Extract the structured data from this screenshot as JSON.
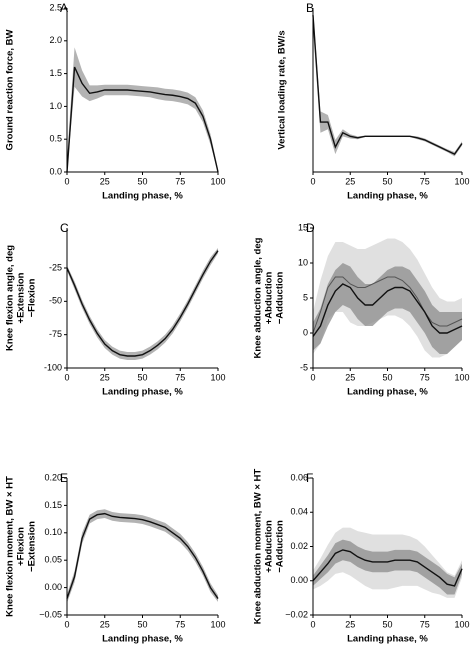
{
  "chart_data": [
    {
      "type": "line",
      "panel": "A",
      "ylabel": [
        "Ground reaction force, BW"
      ],
      "xlabel": "Landing phase, %",
      "x": [
        0,
        5,
        10,
        15,
        20,
        25,
        30,
        35,
        40,
        45,
        50,
        55,
        60,
        65,
        70,
        75,
        80,
        85,
        90,
        95,
        100
      ],
      "xlim": [
        0,
        100
      ],
      "xticks": [
        0,
        25,
        50,
        75,
        100
      ],
      "ylim": [
        0,
        2.5
      ],
      "yticks": [
        {
          "value": 0,
          "label": "0.0"
        },
        {
          "value": 0.5,
          "label": "0.5"
        },
        {
          "value": 1,
          "label": "1.0"
        },
        {
          "value": 1.5,
          "label": "1.5"
        },
        {
          "value": 2,
          "label": "2.0"
        },
        {
          "value": 2.5,
          "label": "2.5"
        }
      ],
      "bands": [
        {
          "color": "#9a9a9a",
          "upper": [
            0.2,
            1.9,
            1.55,
            1.32,
            1.32,
            1.33,
            1.33,
            1.33,
            1.33,
            1.32,
            1.31,
            1.3,
            1.29,
            1.27,
            1.26,
            1.24,
            1.21,
            1.14,
            0.94,
            0.58,
            0.05
          ],
          "lower": [
            0,
            1.3,
            1.15,
            1.08,
            1.12,
            1.17,
            1.17,
            1.17,
            1.17,
            1.16,
            1.15,
            1.14,
            1.11,
            1.09,
            1.08,
            1.06,
            1.03,
            0.96,
            0.76,
            0.42,
            0
          ]
        }
      ],
      "series": [
        {
          "color": "#111",
          "values": [
            0,
            1.6,
            1.35,
            1.2,
            1.22,
            1.25,
            1.25,
            1.25,
            1.25,
            1.24,
            1.23,
            1.22,
            1.2,
            1.18,
            1.17,
            1.15,
            1.12,
            1.05,
            0.85,
            0.5,
            0
          ]
        }
      ]
    },
    {
      "type": "line",
      "panel": "B",
      "ylabel": [
        "Vertical loading rate, BW/s"
      ],
      "xlabel": "Landing phase, %",
      "x": [
        0,
        5,
        10,
        15,
        20,
        25,
        30,
        35,
        40,
        45,
        50,
        55,
        60,
        65,
        70,
        75,
        80,
        85,
        90,
        95,
        100
      ],
      "xlim": [
        0,
        100
      ],
      "xticks": [
        0,
        25,
        50,
        75,
        100
      ],
      "ylim": [
        -50,
        180
      ],
      "bands": [
        {
          "color": "#9a9a9a",
          "upper": [
            180,
            35,
            30,
            -5,
            10,
            3,
            0,
            1,
            1,
            1,
            1,
            1,
            1,
            1,
            0,
            -3,
            -8,
            -13,
            -18,
            -22,
            -7
          ],
          "lower": [
            150,
            5,
            10,
            -25,
            0,
            -3,
            -4,
            -1,
            -1,
            -1,
            -1,
            -1,
            -1,
            -1,
            -4,
            -7,
            -12,
            -17,
            -22,
            -28,
            -13
          ]
        }
      ],
      "series": [
        {
          "color": "#111",
          "values": [
            170,
            20,
            20,
            -15,
            5,
            0,
            -2,
            0,
            0,
            0,
            0,
            0,
            0,
            0,
            -2,
            -5,
            -10,
            -15,
            -20,
            -25,
            -10
          ]
        }
      ]
    },
    {
      "type": "line",
      "panel": "C",
      "ylabel": [
        "Knee flexion angle, deg",
        "+Extension",
        "−Flexion"
      ],
      "xlabel": "Landing phase, %",
      "x": [
        0,
        5,
        10,
        15,
        20,
        25,
        30,
        35,
        40,
        45,
        50,
        55,
        60,
        65,
        70,
        75,
        80,
        85,
        90,
        95,
        100
      ],
      "xlim": [
        0,
        100
      ],
      "xticks": [
        0,
        25,
        50,
        75,
        100
      ],
      "ylim": [
        -100,
        5
      ],
      "yticks": [
        -100,
        -75,
        -50,
        -25
      ],
      "bands": [
        {
          "color": "#9a9a9a",
          "upper": [
            -23,
            -35,
            -49,
            -61,
            -71,
            -79,
            -84,
            -87,
            -88,
            -88,
            -87,
            -84,
            -80,
            -75,
            -68,
            -59,
            -49,
            -38,
            -27,
            -17,
            -10
          ],
          "lower": [
            -27,
            -41,
            -55,
            -67,
            -77,
            -85,
            -90,
            -93,
            -94,
            -94,
            -93,
            -90,
            -86,
            -81,
            -74,
            -65,
            -55,
            -44,
            -33,
            -23,
            -14
          ]
        }
      ],
      "series": [
        {
          "color": "#111",
          "values": [
            -25,
            -38,
            -52,
            -64,
            -74,
            -82,
            -87,
            -90,
            -91,
            -91,
            -90,
            -87,
            -83,
            -78,
            -71,
            -62,
            -52,
            -41,
            -30,
            -20,
            -12
          ]
        }
      ]
    },
    {
      "type": "line",
      "panel": "D",
      "ylabel": [
        "Knee abduction angle, deg",
        "+Abduction",
        "−Adduction"
      ],
      "xlabel": "Landing phase, %",
      "x": [
        0,
        5,
        10,
        15,
        20,
        25,
        30,
        35,
        40,
        45,
        50,
        55,
        60,
        65,
        70,
        75,
        80,
        85,
        90,
        95,
        100
      ],
      "xlim": [
        0,
        100
      ],
      "xticks": [
        0,
        25,
        50,
        75,
        100
      ],
      "ylim": [
        -5,
        15
      ],
      "yticks": [
        -5,
        0,
        5,
        10,
        15
      ],
      "bands": [
        {
          "color": "#d6d6d6",
          "upper": [
            3,
            7.5,
            11,
            13,
            13,
            12.5,
            12,
            12,
            12.5,
            13,
            13.5,
            13.5,
            13,
            12,
            10.5,
            8.5,
            6.5,
            5,
            4.5,
            4.5,
            5
          ],
          "lower": [
            -3,
            -1.5,
            2,
            3,
            3,
            1.5,
            1,
            1,
            1.5,
            2,
            2.5,
            2.5,
            2,
            1,
            -0.5,
            -2.5,
            -3.5,
            -3.5,
            -3,
            -2,
            -1
          ]
        },
        {
          "color": "#8c8c8c",
          "upper": [
            1.5,
            3.5,
            7,
            9,
            10,
            9.5,
            8,
            7,
            7,
            8,
            9,
            9.5,
            9.5,
            9,
            7.5,
            6,
            4,
            3,
            3,
            3,
            3
          ],
          "lower": [
            -2.5,
            -1.5,
            1,
            3,
            4,
            3.5,
            2,
            1,
            1,
            2,
            3,
            3.5,
            3.5,
            3,
            1.5,
            0,
            -2,
            -3,
            -3,
            -2,
            -1
          ]
        }
      ],
      "series": [
        {
          "color": "#555",
          "values": [
            0,
            3,
            6.5,
            8,
            8,
            7,
            6.5,
            6.5,
            7,
            7.5,
            8,
            8,
            7.5,
            6.5,
            5,
            3,
            1.5,
            1,
            1,
            1.5,
            2
          ]
        },
        {
          "color": "#111",
          "values": [
            -0.5,
            1,
            4,
            6,
            7,
            6.5,
            5,
            4,
            4,
            5,
            6,
            6.5,
            6.5,
            6,
            4.5,
            3,
            1,
            0,
            0,
            0.5,
            1
          ]
        }
      ]
    },
    {
      "type": "line",
      "panel": "E",
      "ylabel": [
        "Knee flexion moment, BW × HT",
        "+Flexion",
        "−Extension"
      ],
      "xlabel": "Landing phase, %",
      "x": [
        0,
        5,
        10,
        15,
        20,
        25,
        30,
        35,
        40,
        45,
        50,
        55,
        60,
        65,
        70,
        75,
        80,
        85,
        90,
        95,
        100
      ],
      "xlim": [
        0,
        100
      ],
      "xticks": [
        0,
        25,
        50,
        75,
        100
      ],
      "ylim": [
        -0.05,
        0.2
      ],
      "yticks": [
        {
          "value": -0.05,
          "label": "−0.05"
        },
        {
          "value": 0,
          "label": "0.00"
        },
        {
          "value": 0.05,
          "label": "0.05"
        },
        {
          "value": 0.1,
          "label": "0.10"
        },
        {
          "value": 0.15,
          "label": "0.15"
        },
        {
          "value": 0.2,
          "label": "0.20"
        }
      ],
      "bands": [
        {
          "color": "#9a9a9a",
          "upper": [
            -0.012,
            0.03,
            0.1,
            0.133,
            0.141,
            0.143,
            0.138,
            0.136,
            0.135,
            0.134,
            0.132,
            0.128,
            0.123,
            0.118,
            0.108,
            0.098,
            0.083,
            0.063,
            0.038,
            0.008,
            -0.014
          ],
          "lower": [
            -0.028,
            0.01,
            0.08,
            0.117,
            0.125,
            0.127,
            0.122,
            0.12,
            0.119,
            0.118,
            0.116,
            0.112,
            0.107,
            0.102,
            0.092,
            0.082,
            0.067,
            0.047,
            0.022,
            -0.008,
            -0.026
          ]
        }
      ],
      "series": [
        {
          "color": "#111",
          "values": [
            -0.02,
            0.02,
            0.09,
            0.125,
            0.133,
            0.135,
            0.13,
            0.128,
            0.127,
            0.126,
            0.124,
            0.12,
            0.115,
            0.11,
            0.1,
            0.09,
            0.075,
            0.055,
            0.03,
            0,
            -0.02
          ]
        }
      ]
    },
    {
      "type": "line",
      "panel": "F",
      "ylabel": [
        "Knee abduction moment, BW × HT",
        "+Abduction",
        "−Adduction"
      ],
      "xlabel": "Landing phase, %",
      "x": [
        0,
        5,
        10,
        15,
        20,
        25,
        30,
        35,
        40,
        45,
        50,
        55,
        60,
        65,
        70,
        75,
        80,
        85,
        90,
        95,
        100
      ],
      "xlim": [
        0,
        100
      ],
      "xticks": [
        0,
        25,
        50,
        75,
        100
      ],
      "ylim": [
        -0.02,
        0.06
      ],
      "yticks": [
        {
          "value": -0.02,
          "label": "−0.02"
        },
        {
          "value": 0,
          "label": "0.00"
        },
        {
          "value": 0.02,
          "label": "0.02"
        },
        {
          "value": 0.04,
          "label": "0.04"
        },
        {
          "value": 0.06,
          "label": "0.06"
        }
      ],
      "bands": [
        {
          "color": "#d6d6d6",
          "upper": [
            0.006,
            0.013,
            0.021,
            0.028,
            0.031,
            0.031,
            0.029,
            0.028,
            0.027,
            0.027,
            0.027,
            0.027,
            0.027,
            0.026,
            0.024,
            0.02,
            0.015,
            0.01,
            0.005,
            0.003,
            0.012
          ],
          "lower": [
            -0.005,
            -0.003,
            0.0,
            0.004,
            0.005,
            0.003,
            0.0,
            -0.003,
            -0.005,
            -0.005,
            -0.005,
            -0.004,
            -0.003,
            -0.003,
            -0.003,
            -0.005,
            -0.007,
            -0.008,
            -0.01,
            -0.01,
            0.002
          ]
        },
        {
          "color": "#8c8c8c",
          "upper": [
            0.003,
            0.009,
            0.015,
            0.022,
            0.024,
            0.023,
            0.02,
            0.018,
            0.017,
            0.017,
            0.017,
            0.018,
            0.018,
            0.018,
            0.017,
            0.014,
            0.011,
            0.008,
            0.004,
            0.002,
            0.01
          ],
          "lower": [
            -0.003,
            0.001,
            0.005,
            0.01,
            0.012,
            0.011,
            0.008,
            0.006,
            0.005,
            0.005,
            0.005,
            0.006,
            0.006,
            0.006,
            0.005,
            0.002,
            -0.001,
            -0.004,
            -0.008,
            -0.008,
            0.004
          ]
        }
      ],
      "series": [
        {
          "color": "#111",
          "values": [
            0,
            0.005,
            0.01,
            0.016,
            0.018,
            0.017,
            0.014,
            0.012,
            0.011,
            0.011,
            0.011,
            0.012,
            0.012,
            0.012,
            0.011,
            0.008,
            0.005,
            0.002,
            -0.002,
            -0.003,
            0.007
          ]
        }
      ]
    }
  ]
}
